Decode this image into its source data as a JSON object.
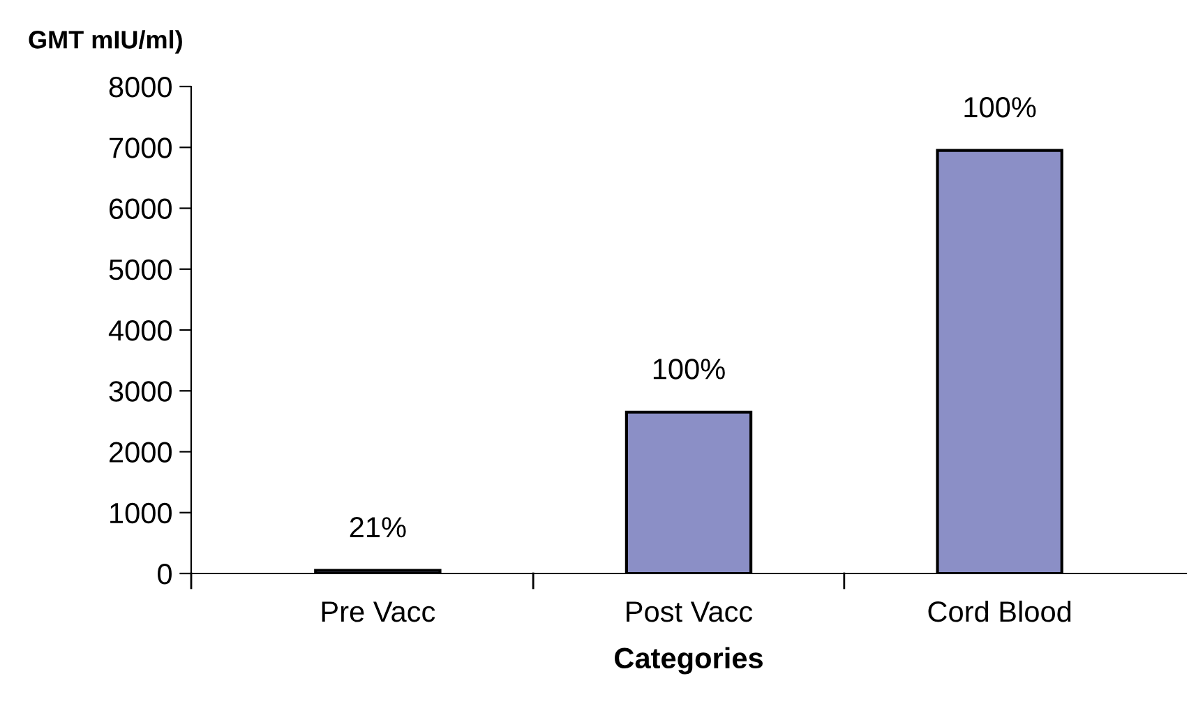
{
  "chart_data": {
    "type": "bar",
    "ylabel": "GMT mIU/ml)",
    "xlabel": "Categories",
    "categories": [
      "Pre Vacc",
      "Post Vacc",
      "Cord Blood"
    ],
    "values": [
      50,
      2650,
      6950
    ],
    "color": "#8b8fc6",
    "annotations": [
      {
        "text": "21%",
        "x": "Pre Vacc",
        "y": 50
      },
      {
        "text": "100%",
        "x": "Post Vacc",
        "y": 2650
      },
      {
        "text": "100%",
        "x": "Cord Blood",
        "y": 6950
      }
    ],
    "ylim": [
      0,
      8000
    ],
    "yticks": [
      0,
      1000,
      2000,
      3000,
      4000,
      5000,
      6000,
      7000,
      8000
    ],
    "grid": false,
    "legend": false
  }
}
